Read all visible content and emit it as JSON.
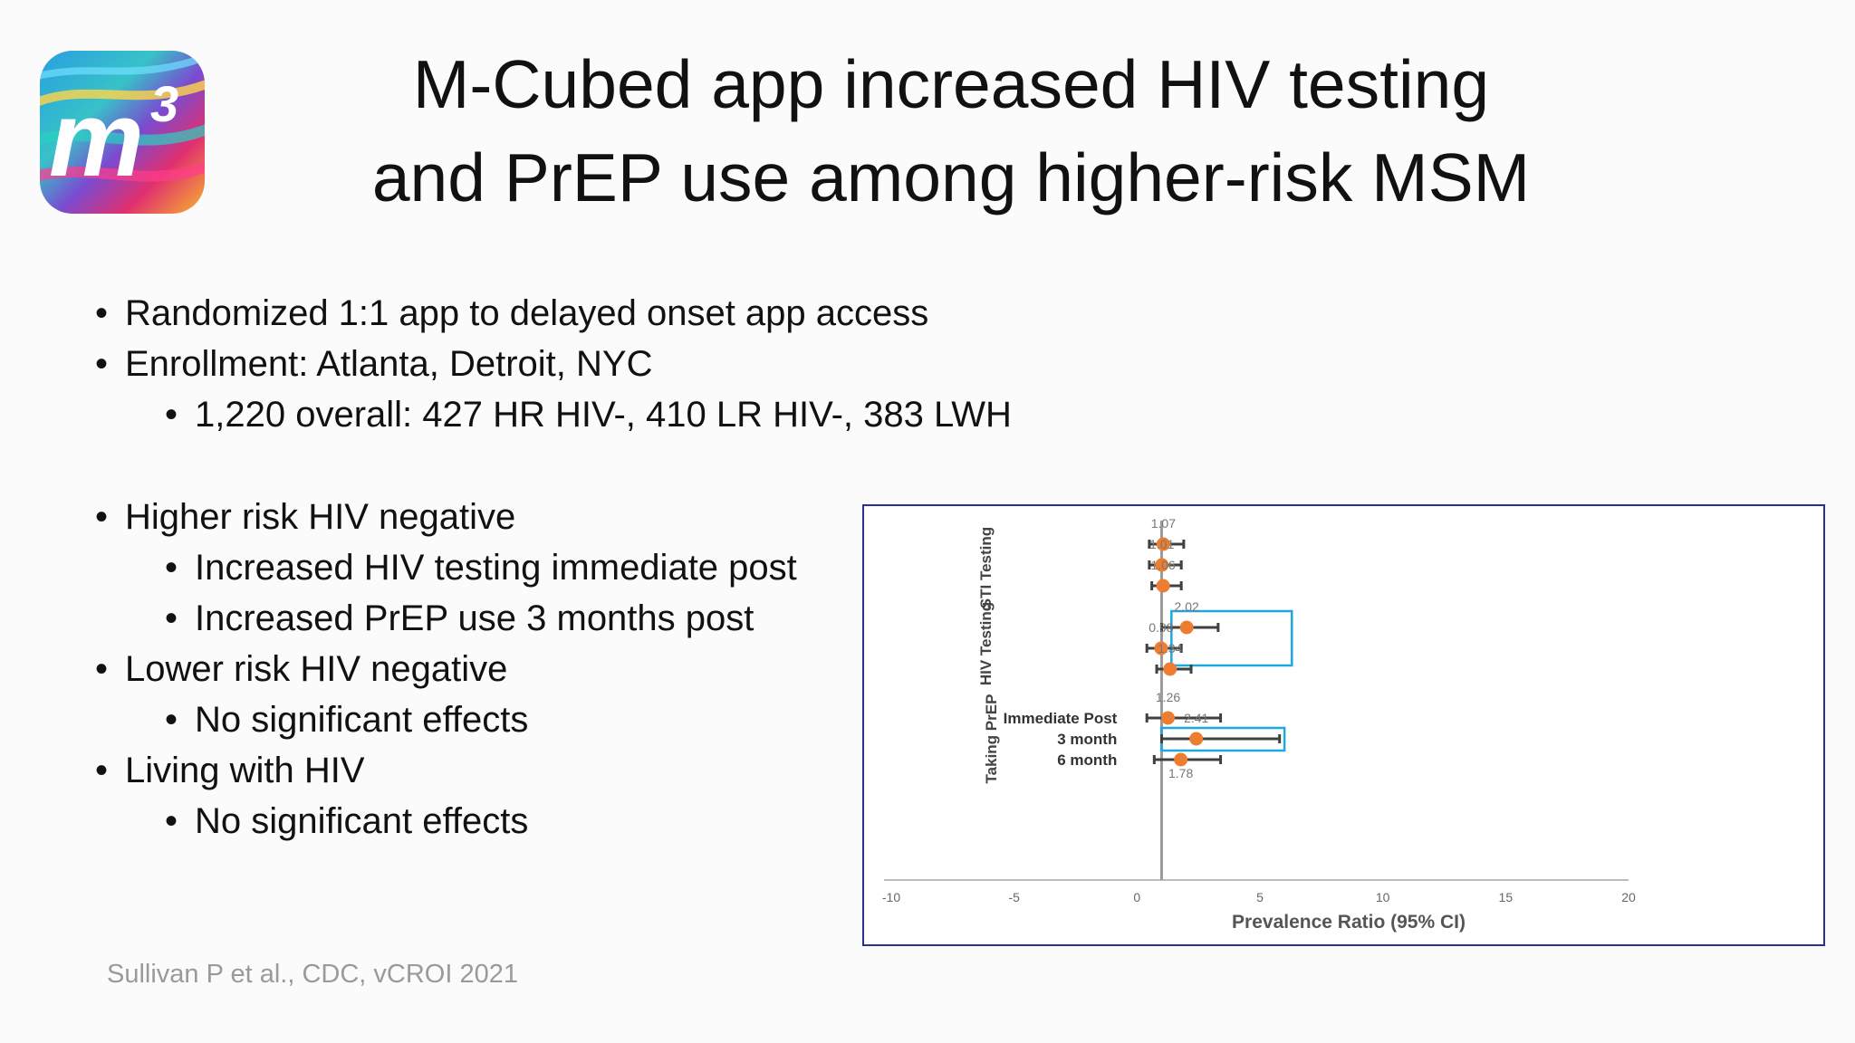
{
  "title": {
    "line1": "M-Cubed app increased HIV testing",
    "line2": "and PrEP use among higher-risk MSM"
  },
  "logo": {
    "text": "m3",
    "icon": "m3-app-logo"
  },
  "bullets": {
    "b1": "Randomized 1:1 app to delayed onset app access",
    "b2": "Enrollment: Atlanta, Detroit, NYC",
    "b2a": "1,220 overall: 427 HR HIV-, 410 LR HIV-, 383 LWH",
    "b3": "Higher risk HIV negative",
    "b3a": "Increased HIV testing immediate post",
    "b3b": "Increased PrEP use 3 months post",
    "b4": "Lower risk HIV negative",
    "b4a": "No significant effects",
    "b5": "Living with HIV",
    "b5a": "No significant effects",
    "bullet_char": "•"
  },
  "citation": "Sullivan P et al., CDC, vCROI 2021",
  "colors": {
    "point": "#ec7d31",
    "highlight": "#1ea7e1",
    "frame": "#2b2f8f",
    "ci": "#404040"
  },
  "chart_data": {
    "type": "forest",
    "xlabel": "Prevalence Ratio (95% CI)",
    "xlim": [
      -10,
      20
    ],
    "xticks": [
      -10,
      -5,
      0,
      5,
      10,
      15,
      20
    ],
    "reference_line": 1,
    "group_labels": [
      "STI Testing",
      "HIV Testing",
      "Taking PrEP"
    ],
    "row_labels": [
      "",
      "",
      "",
      "",
      "",
      "",
      "Immediate Post",
      "3 month",
      "6 month"
    ],
    "points": [
      {
        "group": "STI Testing",
        "label": "",
        "estimate": 1.07,
        "ci": [
          0.5,
          1.9
        ],
        "value_label": "1.07"
      },
      {
        "group": "STI Testing",
        "label": "",
        "estimate": 1.01,
        "ci": [
          0.5,
          1.8
        ],
        "value_label": "1.01"
      },
      {
        "group": "STI Testing",
        "label": "",
        "estimate": 1.06,
        "ci": [
          0.6,
          1.8
        ],
        "value_label": "1.06"
      },
      {
        "group": "HIV Testing",
        "label": "",
        "estimate": 2.02,
        "ci": [
          1.0,
          3.3
        ],
        "value_label": "2.02"
      },
      {
        "group": "HIV Testing",
        "label": "",
        "estimate": 0.98,
        "ci": [
          0.4,
          1.8
        ],
        "value_label": "0.98"
      },
      {
        "group": "HIV Testing",
        "label": "",
        "estimate": 1.34,
        "ci": [
          0.8,
          2.2
        ],
        "value_label": "1.34"
      },
      {
        "group": "Taking PrEP",
        "label": "Immediate Post",
        "estimate": 1.26,
        "ci": [
          0.4,
          3.4
        ],
        "value_label": "1.26"
      },
      {
        "group": "Taking PrEP",
        "label": "3 month",
        "estimate": 2.41,
        "ci": [
          1.0,
          5.8
        ],
        "value_label": "2.41"
      },
      {
        "group": "Taking PrEP",
        "label": "6 month",
        "estimate": 1.78,
        "ci": [
          0.7,
          3.4
        ],
        "value_label": "1.78"
      }
    ],
    "highlighted_rows": [
      3,
      7
    ],
    "grid": false,
    "legend": "none"
  }
}
